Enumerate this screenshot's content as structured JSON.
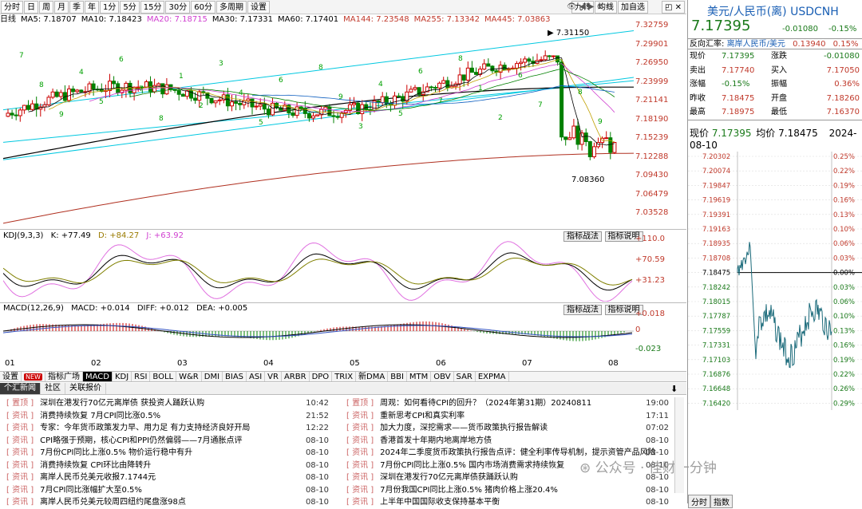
{
  "toolbar": {
    "periods": [
      "分时",
      "日",
      "周",
      "月",
      "季",
      "年",
      "1分",
      "5分",
      "15分",
      "30分",
      "60分",
      "多周期",
      "设置"
    ],
    "right": [
      "九转",
      "均线",
      "加自选"
    ]
  },
  "ma": [
    {
      "label": "日线",
      "color": "#000"
    },
    {
      "label": "MA5: 7.18707",
      "color": "#000"
    },
    {
      "label": "MA10: 7.18423",
      "color": "#000"
    },
    {
      "label": "MA20: 7.18715",
      "color": "#d040d0"
    },
    {
      "label": "MA30: 7.17331",
      "color": "#000"
    },
    {
      "label": "MA60: 7.17401",
      "color": "#000"
    },
    {
      "label": "MA144: 7.23548",
      "color": "#c0392b"
    },
    {
      "label": "MA255: 7.13342",
      "color": "#c0392b"
    },
    {
      "label": "MA445: 7.03863",
      "color": "#c0392b"
    }
  ],
  "yaxis": [
    "7.32759",
    "7.29901",
    "7.26950",
    "7.23999",
    "7.21141",
    "7.18190",
    "7.15239",
    "7.12288",
    "7.09430",
    "7.06479",
    "7.03528"
  ],
  "annotations": {
    "high": "7.31150",
    "low": "7.08360"
  },
  "nine": [
    "7",
    "8",
    "9",
    "4",
    "5",
    "6",
    "7",
    "8",
    "1",
    "2",
    "3",
    "4",
    "5",
    "6",
    "7",
    "8",
    "9",
    "3",
    "4",
    "5",
    "6",
    "7",
    "8",
    "1",
    "2",
    "6",
    "7",
    "2",
    "8",
    "9"
  ],
  "kdj": {
    "label": "KDJ(9,3,3)",
    "k": "K: +77.49",
    "d": "D: +84.27",
    "j": "J: +63.92",
    "btn1": "指标战法",
    "btn2": "指标说明",
    "ticks": [
      "+110.0",
      "+70.59",
      "+31.23"
    ]
  },
  "macd": {
    "label": "MACD(12,26,9)",
    "macd": "MACD: +0.014",
    "diff": "DIFF: +0.012",
    "dea": "DEA: +0.005",
    "btn1": "指标战法",
    "btn2": "指标说明",
    "ticks": [
      "+0.018",
      "0",
      "-0.023"
    ]
  },
  "xaxis": [
    "01",
    "02",
    "03",
    "04",
    "05",
    "06",
    "07",
    "08"
  ],
  "indicators": [
    "设置",
    "NEW",
    "指标广场",
    "MACD",
    "KDJ",
    "RSI",
    "BOLL",
    "W&R",
    "DMI",
    "BIAS",
    "ASI",
    "VR",
    "ARBR",
    "DPO",
    "TRIX",
    "新DMA",
    "BBI",
    "MTM",
    "OBV",
    "SAR",
    "EXPMA"
  ],
  "newstabs": [
    "个汇新闻",
    "社区",
    "关联报价"
  ],
  "news_left": [
    {
      "tag": "[ 置顶 ]",
      "title": "深圳在港发行70亿元离岸债 获投资人踊跃认购",
      "time": "10:42"
    },
    {
      "tag": "[ 资讯 ]",
      "title": "消费持续恢复 7月CPI同比涨0.5%",
      "time": "21:52"
    },
    {
      "tag": "[ 资讯 ]",
      "title": "专家：今年货币政策发力早、用力足 有力支持经济良好开局",
      "time": "12:22"
    },
    {
      "tag": "[ 资讯 ]",
      "title": "CPI略强于预期，核心CPI和PPI仍然偏弱——7月通胀点评",
      "time": "08-10"
    },
    {
      "tag": "[ 资讯 ]",
      "title": "7月份CPI同比上涨0.5% 物价运行稳中有升",
      "time": "08-10"
    },
    {
      "tag": "[ 资讯 ]",
      "title": "消费持续恢复 CPI环比由降转升",
      "time": "08-10"
    },
    {
      "tag": "[ 资讯 ]",
      "title": "离岸人民币兑美元收报7.1744元",
      "time": "08-10"
    },
    {
      "tag": "[ 资讯 ]",
      "title": "7月CPI同比涨幅扩大至0.5%",
      "time": "08-10"
    },
    {
      "tag": "[ 资讯 ]",
      "title": "离岸人民币兑美元较周四纽约尾盘涨98点",
      "time": "08-10"
    }
  ],
  "news_right": [
    {
      "tag": "[ 置顶 ]",
      "title": "周观：如何看待CPI的回升？（2024年第31期）20240811",
      "time": "19:00"
    },
    {
      "tag": "[ 资讯 ]",
      "title": "重新思考CPI和真实利率",
      "time": "17:11"
    },
    {
      "tag": "[ 资讯 ]",
      "title": "加大力度，深挖需求——货币政策执行报告解读",
      "time": "07:02"
    },
    {
      "tag": "[ 资讯 ]",
      "title": "香港首发十年期内地离岸地方债",
      "time": "08-10"
    },
    {
      "tag": "[ 资讯 ]",
      "title": "2024年二季度货币政策执行报告点评：健全利率传导机制，提示资管产品风险",
      "time": "08-10"
    },
    {
      "tag": "[ 资讯 ]",
      "title": "7月份CPI同比上涨0.5% 国内市场消费需求持续恢复",
      "time": "08-10"
    },
    {
      "tag": "[ 资讯 ]",
      "title": "深圳在港发行70亿元离岸债获踊跃认购",
      "time": "08-10"
    },
    {
      "tag": "[ 资讯 ]",
      "title": "7月份我国CPI同比上涨0.5% 猪肉价格上涨20.4%",
      "time": "08-10"
    },
    {
      "tag": "[ 资讯 ]",
      "title": "上半年中国国际收支保持基本平衡",
      "time": "08-10"
    }
  ],
  "watermark": "公众号 · 佳财一分钟",
  "right": {
    "title": "美元/人民币(离) USDCNH",
    "price": "7.17395",
    "chg": "-0.01080",
    "chgp": "-0.15%",
    "rev_label": "反向汇率:",
    "rev_pair": "离岸人民币/美元",
    "rev_val": "0.13940",
    "rev_pct": "0.15%",
    "quote": [
      [
        "现价",
        "7.17395",
        "涨跌",
        "-0.01080"
      ],
      [
        "卖出",
        "7.17740",
        "买入",
        "7.17050"
      ],
      [
        "涨幅",
        "-0.15%",
        "振幅",
        "0.36%"
      ],
      [
        "昨收",
        "7.18475",
        "开盘",
        "7.18260"
      ],
      [
        "最高",
        "7.18975",
        "最低",
        "7.16370"
      ]
    ],
    "cur_label": "现价",
    "cur_price": "7.17395",
    "avg_label": "均价",
    "avg_price": "7.18475",
    "date": "2024-08-10",
    "yticks": [
      "7.20302",
      "7.20074",
      "7.19847",
      "7.19619",
      "7.19391",
      "7.19163",
      "7.18935",
      "7.18708",
      "7.18475",
      "7.18242",
      "7.18015",
      "7.17787",
      "7.17559",
      "7.17331",
      "7.17103",
      "7.16876",
      "7.16648",
      "7.16420"
    ],
    "pticks": [
      "0.25%",
      "0.22%",
      "0.19%",
      "0.16%",
      "0.13%",
      "0.10%",
      "0.06%",
      "0.03%",
      "0.00%",
      "0.03%",
      "0.06%",
      "0.10%",
      "0.13%",
      "0.16%",
      "0.19%",
      "0.22%",
      "0.26%",
      "0.29%"
    ],
    "tabs": [
      "分时",
      "指数"
    ]
  }
}
